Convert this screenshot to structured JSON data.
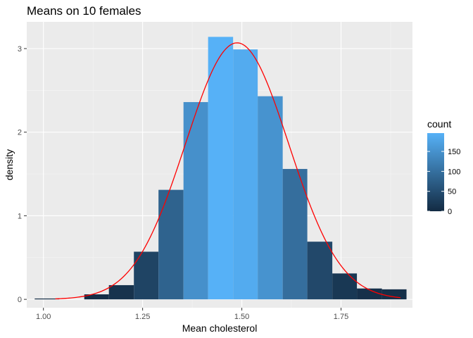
{
  "chart_data": {
    "type": "bar",
    "title": "Means on 10 females",
    "xlabel": "Mean cholesterol",
    "ylabel": "density",
    "xlim": [
      0.958,
      1.93
    ],
    "ylim": [
      -0.1,
      3.32
    ],
    "x_ticks": [
      {
        "value": 1.0,
        "label": "1.00"
      },
      {
        "value": 1.25,
        "label": "1.25"
      },
      {
        "value": 1.5,
        "label": "1.50"
      },
      {
        "value": 1.75,
        "label": "1.75"
      }
    ],
    "y_ticks": [
      {
        "value": 0,
        "label": "0"
      },
      {
        "value": 1,
        "label": "1"
      },
      {
        "value": 2,
        "label": "2"
      },
      {
        "value": 3,
        "label": "3"
      }
    ],
    "grid": true,
    "histogram": {
      "bin_width": 0.0625,
      "bins": [
        {
          "x0": 0.978,
          "x1": 1.04,
          "density": 0.01,
          "count": 1
        },
        {
          "x0": 1.103,
          "x1": 1.165,
          "density": 0.06,
          "count": 4
        },
        {
          "x0": 1.165,
          "x1": 1.228,
          "density": 0.17,
          "count": 11
        },
        {
          "x0": 1.228,
          "x1": 1.29,
          "density": 0.57,
          "count": 36
        },
        {
          "x0": 1.29,
          "x1": 1.353,
          "density": 1.31,
          "count": 82
        },
        {
          "x0": 1.353,
          "x1": 1.415,
          "density": 2.36,
          "count": 148
        },
        {
          "x0": 1.415,
          "x1": 1.478,
          "density": 3.14,
          "count": 196
        },
        {
          "x0": 1.478,
          "x1": 1.54,
          "density": 2.99,
          "count": 187
        },
        {
          "x0": 1.54,
          "x1": 1.603,
          "density": 2.43,
          "count": 152
        },
        {
          "x0": 1.603,
          "x1": 1.665,
          "density": 1.56,
          "count": 98
        },
        {
          "x0": 1.665,
          "x1": 1.728,
          "density": 0.69,
          "count": 43
        },
        {
          "x0": 1.728,
          "x1": 1.79,
          "density": 0.31,
          "count": 19
        },
        {
          "x0": 1.79,
          "x1": 1.853,
          "density": 0.13,
          "count": 8
        },
        {
          "x0": 1.853,
          "x1": 1.915,
          "density": 0.12,
          "count": 7
        }
      ]
    },
    "density_curve": {
      "type": "normal",
      "mean": 1.488,
      "sd": 0.13,
      "x_range": [
        1.03,
        1.9
      ],
      "color": "#ff0000"
    },
    "fill_scale": {
      "title": "count",
      "aesthetic": "count",
      "low_color": "#132b43",
      "high_color": "#56b1f7",
      "range": [
        0,
        196
      ],
      "breaks": [
        {
          "value": 0,
          "label": "0"
        },
        {
          "value": 50,
          "label": "50"
        },
        {
          "value": 100,
          "label": "100"
        },
        {
          "value": 150,
          "label": "150"
        }
      ]
    },
    "panel_background": "#ebebeb"
  }
}
